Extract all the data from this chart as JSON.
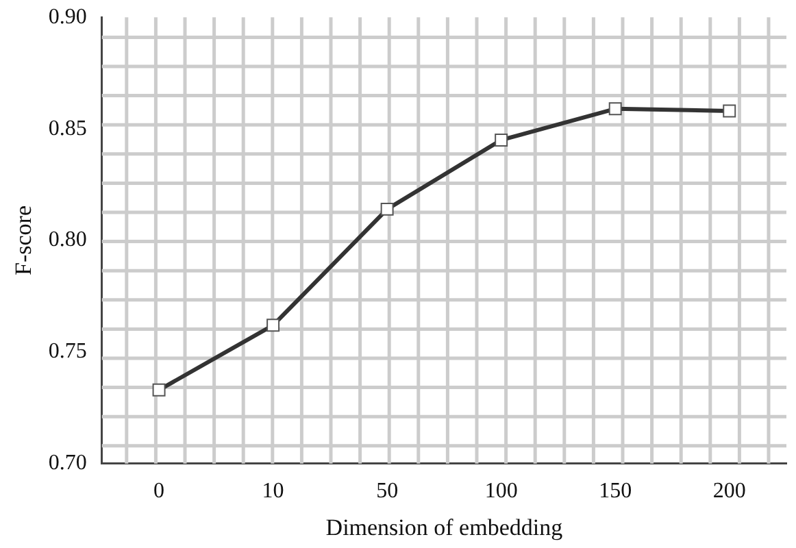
{
  "chart_data": {
    "type": "line",
    "xlabel": "Dimension of embedding",
    "ylabel": "F-score",
    "categories": [
      "0",
      "10",
      "50",
      "100",
      "150",
      "200"
    ],
    "series": [
      {
        "color": "#333333",
        "values": [
          0.733,
          0.762,
          0.814,
          0.845,
          0.859,
          0.858
        ]
      }
    ],
    "ylim": [
      0.7,
      0.9
    ],
    "yticks": [
      {
        "value": 0.7,
        "label": "0.70"
      },
      {
        "value": 0.75,
        "label": "0.75"
      },
      {
        "value": 0.8,
        "label": "0.80"
      },
      {
        "value": 0.85,
        "label": "0.85"
      },
      {
        "value": 0.9,
        "label": "0.90"
      }
    ],
    "grid": true,
    "marker": "square",
    "line_style": "solid",
    "legend": false
  }
}
